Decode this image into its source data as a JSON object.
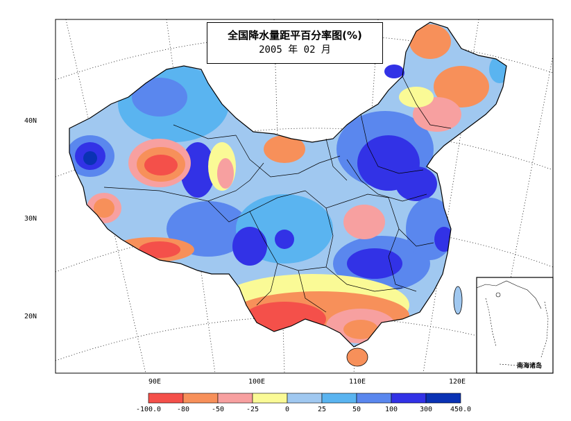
{
  "title": {
    "line1": "全国降水量距平百分率图(%)",
    "line2": "2005 年 02 月"
  },
  "axes": {
    "lat_labels": [
      "40N",
      "30N",
      "20N"
    ],
    "lon_labels": [
      "90E",
      "100E",
      "110E",
      "120E"
    ]
  },
  "legend": {
    "ticks": [
      "-100.0",
      "-80",
      "-50",
      "-25",
      "0",
      "25",
      "50",
      "100",
      "300",
      "450.0"
    ],
    "colors": [
      "#f4504a",
      "#f7905a",
      "#f7a0a0",
      "#fafa96",
      "#a0c8f0",
      "#5ab4f0",
      "#5a87ee",
      "#3232e6",
      "#0a32b4"
    ]
  },
  "inset": {
    "label": "南海诸岛"
  },
  "colors": {
    "dry_strong": "#f4504a",
    "dry": "#f7905a",
    "dry_light": "#f7a0a0",
    "neutral": "#fafa96",
    "wet_light": "#a0c8f0",
    "wet": "#5ab4f0",
    "wet_more": "#5a87ee",
    "wet_strong": "#3232e6",
    "wet_max": "#0a32b4"
  }
}
